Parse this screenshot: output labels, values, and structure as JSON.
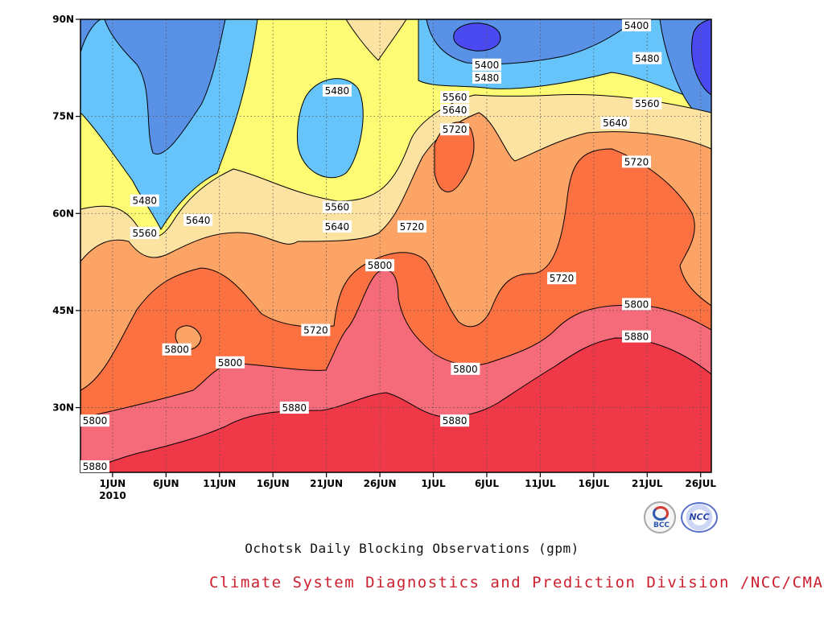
{
  "chart_data": {
    "type": "heatmap",
    "title": "Ochotsk Daily Blocking Observations (gpm)",
    "credit": "Climate System Diagnostics and Prediction Division /NCC/CMA",
    "year_label": "2010",
    "x_ticks": [
      "1JUN",
      "6JUN",
      "11JUN",
      "16JUN",
      "21JUN",
      "26JUN",
      "1JUL",
      "6JUL",
      "11JUL",
      "16JUL",
      "21JUL",
      "26JUL"
    ],
    "y_ticks": [
      "30N",
      "45N",
      "60N",
      "75N",
      "90N"
    ],
    "y_tick_values": [
      30,
      45,
      60,
      75,
      90
    ],
    "x_start": "2010-05-29",
    "x_end": "2010-07-27",
    "ylim": [
      20,
      90
    ],
    "grid": true,
    "contour_levels": [
      5400,
      5480,
      5560,
      5640,
      5720,
      5800,
      5880
    ],
    "fill_colors": [
      "#4a4af0",
      "#5991e6",
      "#66c4fa",
      "#fdfb74",
      "#fde3a2",
      "#fca466",
      "#fc7141",
      "#f56b7a",
      "#ef3848"
    ],
    "contour_labels": [
      {
        "text": "5400",
        "date": "2010-07-20",
        "lat": 90
      },
      {
        "text": "5400",
        "date": "2010-07-06",
        "lat": 83
      },
      {
        "text": "5480",
        "date": "2010-07-06",
        "lat": 81
      },
      {
        "text": "5480",
        "date": "2010-07-21",
        "lat": 84
      },
      {
        "text": "5480",
        "date": "2010-06-22",
        "lat": 79
      },
      {
        "text": "5480",
        "date": "2010-06-04",
        "lat": 62
      },
      {
        "text": "5560",
        "date": "2010-07-03",
        "lat": 78
      },
      {
        "text": "5560",
        "date": "2010-07-21",
        "lat": 77
      },
      {
        "text": "5560",
        "date": "2010-06-22",
        "lat": 61
      },
      {
        "text": "5560",
        "date": "2010-06-04",
        "lat": 57
      },
      {
        "text": "5640",
        "date": "2010-07-03",
        "lat": 76
      },
      {
        "text": "5640",
        "date": "2010-07-18",
        "lat": 74
      },
      {
        "text": "5640",
        "date": "2010-06-09",
        "lat": 59
      },
      {
        "text": "5640",
        "date": "2010-06-22",
        "lat": 58
      },
      {
        "text": "5720",
        "date": "2010-07-03",
        "lat": 73
      },
      {
        "text": "5720",
        "date": "2010-07-20",
        "lat": 68
      },
      {
        "text": "5720",
        "date": "2010-06-29",
        "lat": 58
      },
      {
        "text": "5720",
        "date": "2010-07-13",
        "lat": 50
      },
      {
        "text": "5720",
        "date": "2010-06-20",
        "lat": 42
      },
      {
        "text": "5800",
        "date": "2010-06-26",
        "lat": 52
      },
      {
        "text": "5800",
        "date": "2010-07-20",
        "lat": 46
      },
      {
        "text": "5800",
        "date": "2010-06-07",
        "lat": 39
      },
      {
        "text": "5800",
        "date": "2010-06-12",
        "lat": 37
      },
      {
        "text": "5800",
        "date": "2010-07-04",
        "lat": 36
      },
      {
        "text": "5800",
        "date": "2010-05-29",
        "lat": 28
      },
      {
        "text": "5880",
        "date": "2010-07-20",
        "lat": 41
      },
      {
        "text": "5880",
        "date": "2010-06-18",
        "lat": 30
      },
      {
        "text": "5880",
        "date": "2010-07-03",
        "lat": 28
      },
      {
        "text": "5880",
        "date": "2010-05-29",
        "lat": 20
      }
    ]
  },
  "logos": {
    "left": "BCC",
    "right": "NCC"
  }
}
